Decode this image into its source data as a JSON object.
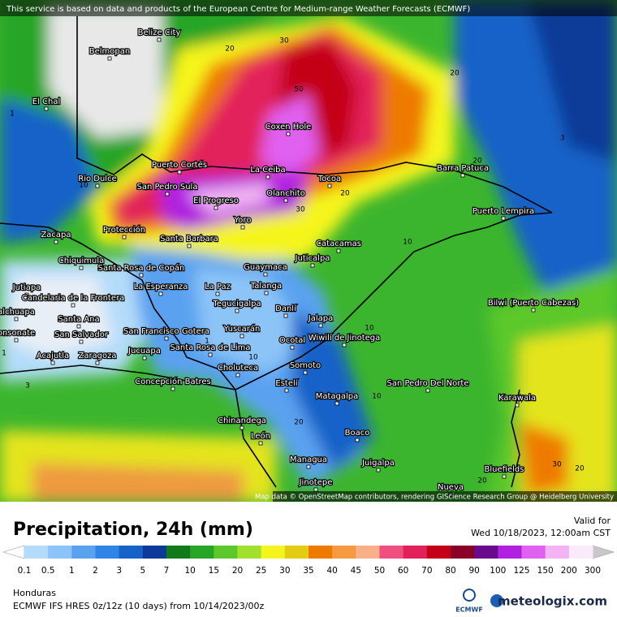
{
  "banner": "This service is based on data and products of the European Centre for Medium-range Weather Forecasts (ECMWF)",
  "map": {
    "cities": [
      "Belize City",
      "Belmopan",
      "El Chal",
      "Coxen Hole",
      "Puerto Cortés",
      "La Ceiba",
      "Barra Patuca",
      "Rio Dulce",
      "San Pedro Sula",
      "El Progreso",
      "Olanchito",
      "Tocoa",
      "Puerto Lempira",
      "Yoro",
      "Zacapa",
      "Protección",
      "Santa Barbara",
      "Catacamas",
      "Chiquimula",
      "Juticalpa",
      "Guaymaca",
      "Santa Rosa de Copán",
      "La Esperanza",
      "La Paz",
      "Talanga",
      "Jutiapa",
      "Candelaria de la Frontera",
      "Bilwi (Puerto Cabezas)",
      "Tegucigalpa",
      "Danlí",
      "alchuapa",
      "Santa Ana",
      "Jalapa",
      "San Francisco Gotera",
      "Yuscarán",
      "Wiwilí de Jinotega",
      "onsonate",
      "San Salvador",
      "Ocotal",
      "Santa Rosa de Lima",
      "Jucuapa",
      "Acajutla",
      "Zaragoza",
      "Somoto",
      "Choluteca",
      "Concepción Batres",
      "Estelí",
      "San Pedro Del Norte",
      "Matagalpa",
      "Karawala",
      "Chinandega",
      "Boaco",
      "León",
      "Managua",
      "Juigalpa",
      "Bluefields",
      "Jinotepe",
      "Nueva"
    ],
    "contour_labels": [
      20,
      30,
      20,
      50,
      3,
      1,
      10,
      20,
      30,
      20,
      10,
      10,
      1,
      3,
      10,
      10,
      20,
      20,
      20,
      30,
      1
    ],
    "attribution": "Map data © OpenStreetMap contributors, rendering GIScience Research Group @ Heidelberg University"
  },
  "legend": {
    "title": "Precipitation, 24h (mm)",
    "valid_label": "Valid for",
    "valid_time": "Wed 10/18/2023, 12:00am CST",
    "ticks": [
      0.1,
      0.5,
      1,
      2,
      3,
      5,
      7,
      10,
      15,
      20,
      25,
      30,
      35,
      40,
      45,
      50,
      60,
      70,
      80,
      90,
      100,
      125,
      150,
      200,
      300
    ],
    "colors": [
      "#ffffff",
      "#b4dcfa",
      "#8cc4f8",
      "#5aa2f0",
      "#2f84e6",
      "#1762c8",
      "#0c3a98",
      "#137a1c",
      "#27a527",
      "#5cc82c",
      "#a2e030",
      "#f5f51e",
      "#e4cc14",
      "#ee7a00",
      "#f59a40",
      "#f8b088",
      "#f05080",
      "#e2205a",
      "#c40018",
      "#8a0028",
      "#6a0a8c",
      "#b020e0",
      "#e060f0",
      "#f2b4f2",
      "#faeafa",
      "#c8c8c8"
    ]
  },
  "footer": {
    "region": "Honduras",
    "model": "ECMWF IFS HRES 0z/12z (10 days) from  10/14/2023/00z",
    "ecmwf_logo": "ECMWF",
    "brand": "meteologix.com"
  }
}
